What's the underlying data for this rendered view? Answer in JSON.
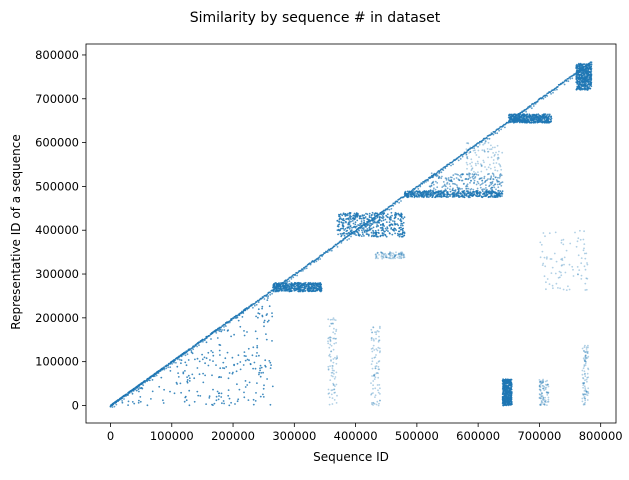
{
  "chart_data": {
    "type": "scatter",
    "title": "Similarity by sequence # in dataset",
    "xlabel": "Sequence ID",
    "ylabel": "Representative ID of a sequence",
    "xlim": [
      -40000,
      825000
    ],
    "ylim": [
      -40000,
      825000
    ],
    "x_ticks": [
      0,
      100000,
      200000,
      300000,
      400000,
      500000,
      600000,
      700000,
      800000
    ],
    "x_tick_labels": [
      "0",
      "100000",
      "200000",
      "300000",
      "400000",
      "500000",
      "600000",
      "700000",
      "800000"
    ],
    "y_ticks": [
      0,
      100000,
      200000,
      300000,
      400000,
      500000,
      600000,
      700000,
      800000
    ],
    "y_tick_labels": [
      "0",
      "100000",
      "200000",
      "300000",
      "400000",
      "500000",
      "600000",
      "700000",
      "800000"
    ],
    "grid": false,
    "legend": false,
    "marker_color": "#1f77b4",
    "series": [
      {
        "kind": "diagonal",
        "x_range": [
          0,
          785000
        ]
      },
      {
        "kind": "clusters",
        "blocks": [
          {
            "x": [
              0,
              265000
            ],
            "y": [
              0,
              260000
            ],
            "density": "high",
            "shape": "lower-triangle"
          },
          {
            "x": [
              265000,
              345000
            ],
            "y": [
              260000,
              280000
            ],
            "density": "high",
            "shape": "band"
          },
          {
            "x": [
              370000,
              480000
            ],
            "y": [
              385000,
              440000
            ],
            "density": "high",
            "shape": "band"
          },
          {
            "x": [
              430000,
              480000
            ],
            "y": [
              335000,
              350000
            ],
            "density": "low",
            "shape": "band"
          },
          {
            "x": [
              480000,
              640000
            ],
            "y": [
              475000,
              490000
            ],
            "density": "high",
            "shape": "band"
          },
          {
            "x": [
              520000,
              640000
            ],
            "y": [
              490000,
              530000
            ],
            "density": "medium",
            "shape": "band"
          },
          {
            "x": [
              580000,
              640000
            ],
            "y": [
              530000,
              600000
            ],
            "density": "low",
            "shape": "band"
          },
          {
            "x": [
              640000,
              655000
            ],
            "y": [
              0,
              60000
            ],
            "density": "high",
            "shape": "column"
          },
          {
            "x": [
              650000,
              720000
            ],
            "y": [
              645000,
              665000
            ],
            "density": "high",
            "shape": "band"
          },
          {
            "x": [
              700000,
              780000
            ],
            "y": [
              260000,
              400000
            ],
            "density": "low",
            "shape": "band"
          },
          {
            "x": [
              760000,
              785000
            ],
            "y": [
              720000,
              780000
            ],
            "density": "high",
            "shape": "band"
          },
          {
            "x": [
              355000,
              370000
            ],
            "y": [
              0,
              200000
            ],
            "density": "low",
            "shape": "column"
          },
          {
            "x": [
              425000,
              440000
            ],
            "y": [
              0,
              180000
            ],
            "density": "low",
            "shape": "column"
          },
          {
            "x": [
              700000,
              715000
            ],
            "y": [
              0,
              60000
            ],
            "density": "low",
            "shape": "column"
          },
          {
            "x": [
              770000,
              780000
            ],
            "y": [
              0,
              140000
            ],
            "density": "low",
            "shape": "column"
          }
        ]
      }
    ]
  }
}
